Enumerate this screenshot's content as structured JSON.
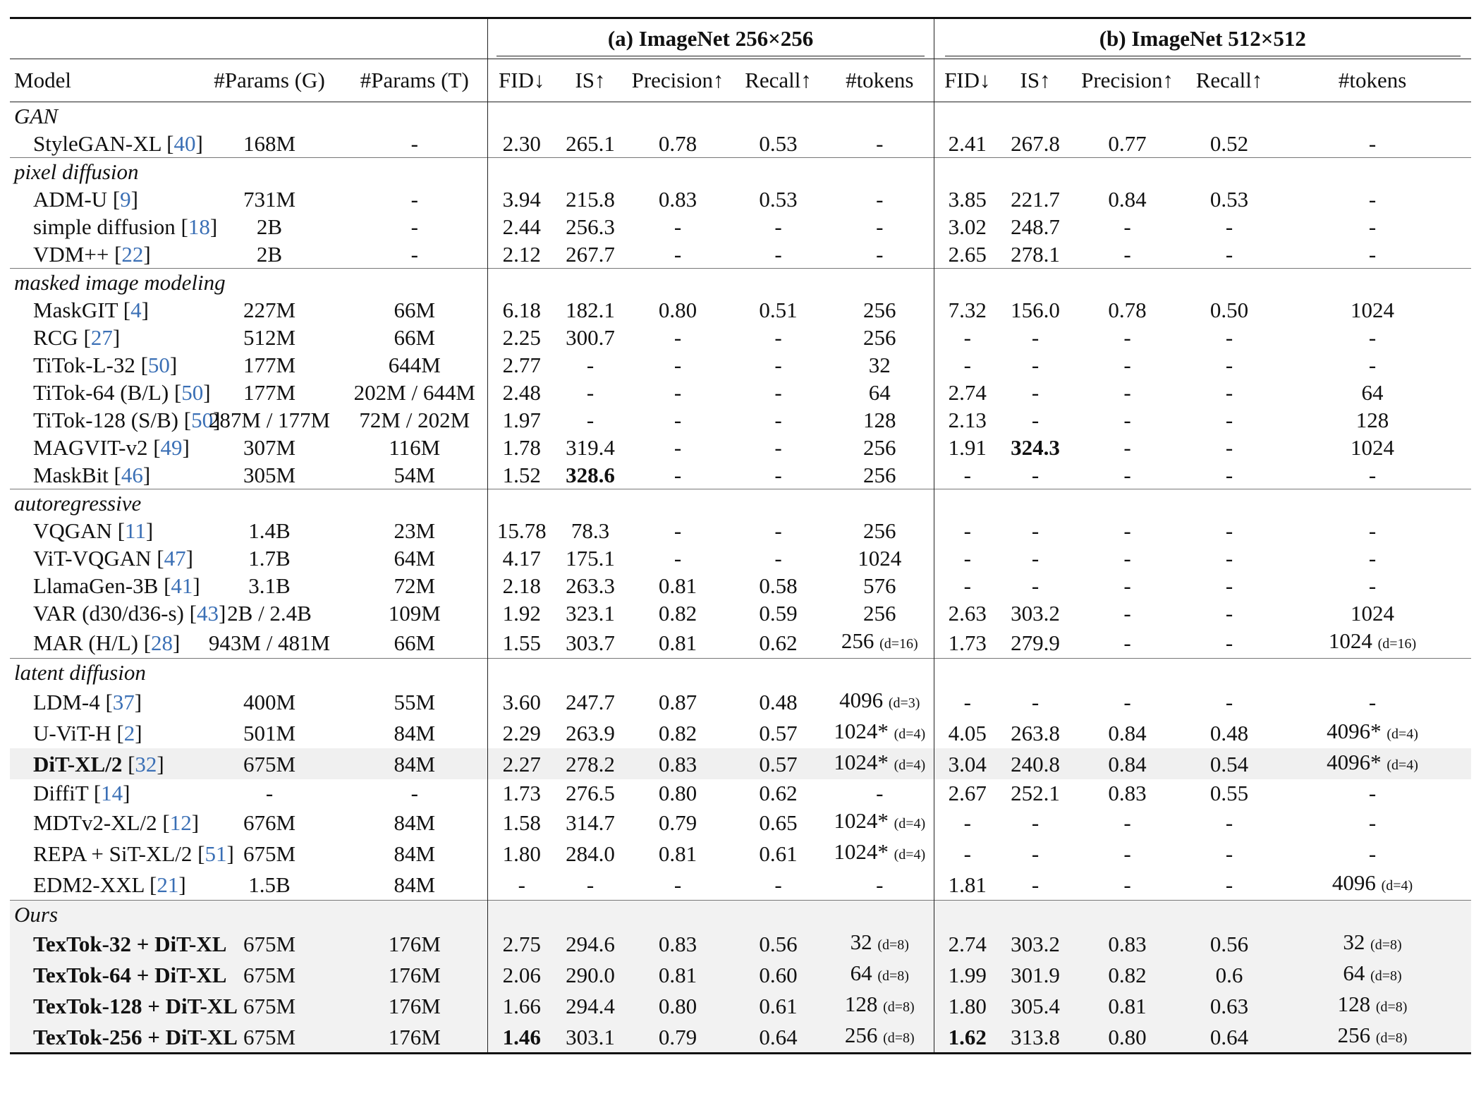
{
  "groups": {
    "a": "(a) ImageNet 256×256",
    "b": "(b) ImageNet 512×512"
  },
  "columns": {
    "model": "Model",
    "params_g": "#Params (G)",
    "params_t": "#Params (T)",
    "fid": "FID↓",
    "is": "IS↑",
    "precision": "Precision↑",
    "recall": "Recall↑",
    "tokens": "#tokens"
  },
  "sections": [
    {
      "category": "GAN",
      "rows": [
        {
          "name": "StyleGAN-XL",
          "ref": "40",
          "pg": "168M",
          "pt": "-",
          "a": [
            "2.30",
            "265.1",
            "0.78",
            "0.53",
            "-"
          ],
          "b": [
            "2.41",
            "267.8",
            "0.77",
            "0.52",
            "-"
          ]
        }
      ]
    },
    {
      "category": "pixel diffusion",
      "rows": [
        {
          "name": "ADM-U",
          "ref": "9",
          "pg": "731M",
          "pt": "-",
          "a": [
            "3.94",
            "215.8",
            "0.83",
            "0.53",
            "-"
          ],
          "b": [
            "3.85",
            "221.7",
            "0.84",
            "0.53",
            "-"
          ]
        },
        {
          "name": "simple diffusion",
          "ref": "18",
          "pg": "2B",
          "pt": "-",
          "a": [
            "2.44",
            "256.3",
            "-",
            "-",
            "-"
          ],
          "b": [
            "3.02",
            "248.7",
            "-",
            "-",
            "-"
          ]
        },
        {
          "name": "VDM++",
          "ref": "22",
          "pg": "2B",
          "pt": "-",
          "a": [
            "2.12",
            "267.7",
            "-",
            "-",
            "-"
          ],
          "b": [
            "2.65",
            "278.1",
            "-",
            "-",
            "-"
          ]
        }
      ]
    },
    {
      "category": "masked image modeling",
      "rows": [
        {
          "name": "MaskGIT",
          "ref": "4",
          "pg": "227M",
          "pt": "66M",
          "a": [
            "6.18",
            "182.1",
            "0.80",
            "0.51",
            "256"
          ],
          "b": [
            "7.32",
            "156.0",
            "0.78",
            "0.50",
            "1024"
          ]
        },
        {
          "name": "RCG",
          "ref": "27",
          "pg": "512M",
          "pt": "66M",
          "a": [
            "2.25",
            "300.7",
            "-",
            "-",
            "256"
          ],
          "b": [
            "-",
            "-",
            "-",
            "-",
            "-"
          ]
        },
        {
          "name": "TiTok-L-32",
          "ref": "50",
          "pg": "177M",
          "pt": "644M",
          "a": [
            "2.77",
            "-",
            "-",
            "-",
            "32"
          ],
          "b": [
            "-",
            "-",
            "-",
            "-",
            "-"
          ]
        },
        {
          "name": "TiTok-64 (B/L)",
          "ref": "50",
          "pg": "177M",
          "pt": "202M / 644M",
          "a": [
            "2.48",
            "-",
            "-",
            "-",
            "64"
          ],
          "b": [
            "2.74",
            "-",
            "-",
            "-",
            "64"
          ]
        },
        {
          "name": "TiTok-128 (S/B)",
          "ref": "50",
          "pg": "287M / 177M",
          "pt": "72M / 202M",
          "a": [
            "1.97",
            "-",
            "-",
            "-",
            "128"
          ],
          "b": [
            "2.13",
            "-",
            "-",
            "-",
            "128"
          ]
        },
        {
          "name": "MAGVIT-v2",
          "ref": "49",
          "pg": "307M",
          "pt": "116M",
          "a": [
            "1.78",
            "319.4",
            "-",
            "-",
            "256"
          ],
          "b": [
            "1.91",
            "324.3",
            "-",
            "-",
            "1024"
          ],
          "bold_b": [
            1
          ]
        },
        {
          "name": "MaskBit",
          "ref": "46",
          "pg": "305M",
          "pt": "54M",
          "a": [
            "1.52",
            "328.6",
            "-",
            "-",
            "256"
          ],
          "bold_a": [
            1
          ],
          "b": [
            "-",
            "-",
            "-",
            "-",
            "-"
          ]
        }
      ]
    },
    {
      "category": "autoregressive",
      "rows": [
        {
          "name": "VQGAN",
          "ref": "11",
          "pg": "1.4B",
          "pt": "23M",
          "a": [
            "15.78",
            "78.3",
            "-",
            "-",
            "256"
          ],
          "b": [
            "-",
            "-",
            "-",
            "-",
            "-"
          ]
        },
        {
          "name": "ViT-VQGAN",
          "ref": "47",
          "pg": "1.7B",
          "pt": "64M",
          "a": [
            "4.17",
            "175.1",
            "-",
            "-",
            "1024"
          ],
          "b": [
            "-",
            "-",
            "-",
            "-",
            "-"
          ]
        },
        {
          "name": "LlamaGen-3B",
          "ref": "41",
          "pg": "3.1B",
          "pt": "72M",
          "a": [
            "2.18",
            "263.3",
            "0.81",
            "0.58",
            "576"
          ],
          "b": [
            "-",
            "-",
            "-",
            "-",
            "-"
          ]
        },
        {
          "name": "VAR (d30/d36-s)",
          "ref": "43",
          "pg": "2B / 2.4B",
          "pt": "109M",
          "a": [
            "1.92",
            "323.1",
            "0.82",
            "0.59",
            "256"
          ],
          "b": [
            "2.63",
            "303.2",
            "-",
            "-",
            "1024"
          ]
        },
        {
          "name": "MAR (H/L)",
          "ref": "28",
          "pg": "943M / 481M",
          "pt": "66M",
          "a": [
            "1.55",
            "303.7",
            "0.81",
            "0.62",
            "256"
          ],
          "tok_a_d": "(d=16)",
          "b": [
            "1.73",
            "279.9",
            "-",
            "-",
            "1024"
          ],
          "tok_b_d": "(d=16)"
        }
      ]
    },
    {
      "category": "latent diffusion",
      "rows": [
        {
          "name": "LDM-4",
          "ref": "37",
          "pg": "400M",
          "pt": "55M",
          "a": [
            "3.60",
            "247.7",
            "0.87",
            "0.48",
            "4096"
          ],
          "tok_a_d": "(d=3)",
          "b": [
            "-",
            "-",
            "-",
            "-",
            "-"
          ]
        },
        {
          "name": "U-ViT-H",
          "ref": "2",
          "pg": "501M",
          "pt": "84M",
          "a": [
            "2.29",
            "263.9",
            "0.82",
            "0.57",
            "1024*"
          ],
          "tok_a_d": "(d=4)",
          "b": [
            "4.05",
            "263.8",
            "0.84",
            "0.48",
            "4096*"
          ],
          "tok_b_d": "(d=4)"
        },
        {
          "name": "DiT-XL/2",
          "ref": "32",
          "pg": "675M",
          "pt": "84M",
          "bold_name": true,
          "highlight": true,
          "a": [
            "2.27",
            "278.2",
            "0.83",
            "0.57",
            "1024*"
          ],
          "tok_a_d": "(d=4)",
          "b": [
            "3.04",
            "240.8",
            "0.84",
            "0.54",
            "4096*"
          ],
          "tok_b_d": "(d=4)"
        },
        {
          "name": "DiffiT",
          "ref": "14",
          "pg": "-",
          "pt": "-",
          "a": [
            "1.73",
            "276.5",
            "0.80",
            "0.62",
            "-"
          ],
          "b": [
            "2.67",
            "252.1",
            "0.83",
            "0.55",
            "-"
          ]
        },
        {
          "name": "MDTv2-XL/2",
          "ref": "12",
          "pg": "676M",
          "pt": "84M",
          "a": [
            "1.58",
            "314.7",
            "0.79",
            "0.65",
            "1024*"
          ],
          "tok_a_d": "(d=4)",
          "b": [
            "-",
            "-",
            "-",
            "-",
            "-"
          ]
        },
        {
          "name": "REPA + SiT-XL/2",
          "ref": "51",
          "pg": "675M",
          "pt": "84M",
          "a": [
            "1.80",
            "284.0",
            "0.81",
            "0.61",
            "1024*"
          ],
          "tok_a_d": "(d=4)",
          "b": [
            "-",
            "-",
            "-",
            "-",
            "-"
          ]
        },
        {
          "name": "EDM2-XXL",
          "ref": "21",
          "pg": "1.5B",
          "pt": "84M",
          "a": [
            "-",
            "-",
            "-",
            "-",
            "-"
          ],
          "b": [
            "1.81",
            "-",
            "-",
            "-",
            "4096"
          ],
          "tok_b_d": "(d=4)"
        }
      ]
    },
    {
      "category": "Ours",
      "ours": true,
      "rows": [
        {
          "name": "TexTok-32 + DiT-XL",
          "pg": "675M",
          "pt": "176M",
          "bold_name": true,
          "a": [
            "2.75",
            "294.6",
            "0.83",
            "0.56",
            "32"
          ],
          "tok_a_d": "(d=8)",
          "b": [
            "2.74",
            "303.2",
            "0.83",
            "0.56",
            "32"
          ],
          "tok_b_d": "(d=8)"
        },
        {
          "name": "TexTok-64 + DiT-XL",
          "pg": "675M",
          "pt": "176M",
          "bold_name": true,
          "a": [
            "2.06",
            "290.0",
            "0.81",
            "0.60",
            "64"
          ],
          "tok_a_d": "(d=8)",
          "b": [
            "1.99",
            "301.9",
            "0.82",
            "0.6",
            "64"
          ],
          "tok_b_d": "(d=8)"
        },
        {
          "name": "TexTok-128 + DiT-XL",
          "pg": "675M",
          "pt": "176M",
          "bold_name": true,
          "a": [
            "1.66",
            "294.4",
            "0.80",
            "0.61",
            "128"
          ],
          "tok_a_d": "(d=8)",
          "b": [
            "1.80",
            "305.4",
            "0.81",
            "0.63",
            "128"
          ],
          "tok_b_d": "(d=8)"
        },
        {
          "name": "TexTok-256 + DiT-XL",
          "pg": "675M",
          "pt": "176M",
          "bold_name": true,
          "a": [
            "1.46",
            "303.1",
            "0.79",
            "0.64",
            "256"
          ],
          "tok_a_d": "(d=8)",
          "bold_a": [
            0
          ],
          "b": [
            "1.62",
            "313.8",
            "0.80",
            "0.64",
            "256"
          ],
          "tok_b_d": "(d=8)",
          "bold_b": [
            0
          ]
        }
      ]
    }
  ]
}
